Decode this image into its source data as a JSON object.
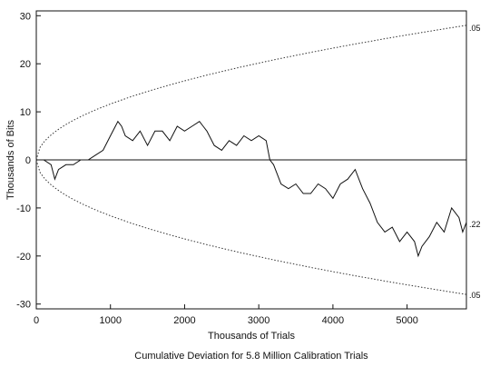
{
  "chart_data": {
    "type": "line",
    "title": "Cumulative Deviation for 5.8 Million Calibration Trials",
    "xlabel": "Thousands of Trials",
    "ylabel": "Thousands of Bits",
    "xlim": [
      0,
      5800
    ],
    "ylim": [
      -31,
      31
    ],
    "xticks": [
      0,
      1000,
      2000,
      3000,
      4000,
      5000
    ],
    "yticks": [
      -30,
      -20,
      -10,
      0,
      10,
      20,
      30
    ],
    "grid": false,
    "legend": "none",
    "reference_line": {
      "y": 0
    },
    "envelope": {
      "significance": ".05",
      "upper_end_value": 28,
      "lower_end_value": -28,
      "shape": "sqrt",
      "upper_label": ".05",
      "lower_label": ".05"
    },
    "end_label": ".22",
    "series": [
      {
        "x": [
          0,
          100,
          200,
          250,
          300,
          400,
          500,
          600,
          700,
          800,
          900,
          1000,
          1100,
          1150,
          1200,
          1300,
          1400,
          1500,
          1600,
          1700,
          1800,
          1900,
          2000,
          2100,
          2200,
          2250,
          2300,
          2400,
          2500,
          2600,
          2700,
          2800,
          2900,
          3000,
          3100,
          3150,
          3200,
          3300,
          3400,
          3500,
          3600,
          3700,
          3800,
          3900,
          4000,
          4100,
          4200,
          4300,
          4400,
          4500,
          4600,
          4700,
          4800,
          4900,
          5000,
          5100,
          5150,
          5200,
          5300,
          5400,
          5500,
          5600,
          5700,
          5750,
          5800
        ],
        "y": [
          0,
          0,
          -1,
          -4,
          -2,
          -1,
          -1,
          0,
          0,
          1,
          2,
          5,
          8,
          7,
          5,
          4,
          6,
          3,
          6,
          6,
          4,
          7,
          6,
          7,
          8,
          7,
          6,
          3,
          2,
          4,
          3,
          5,
          4,
          5,
          4,
          0,
          -1,
          -5,
          -6,
          -5,
          -7,
          -7,
          -5,
          -6,
          -8,
          -5,
          -4,
          -2,
          -6,
          -9,
          -13,
          -15,
          -14,
          -17,
          -15,
          -17,
          -20,
          -18,
          -16,
          -13,
          -15,
          -10,
          -12,
          -15,
          -13
        ]
      }
    ]
  }
}
